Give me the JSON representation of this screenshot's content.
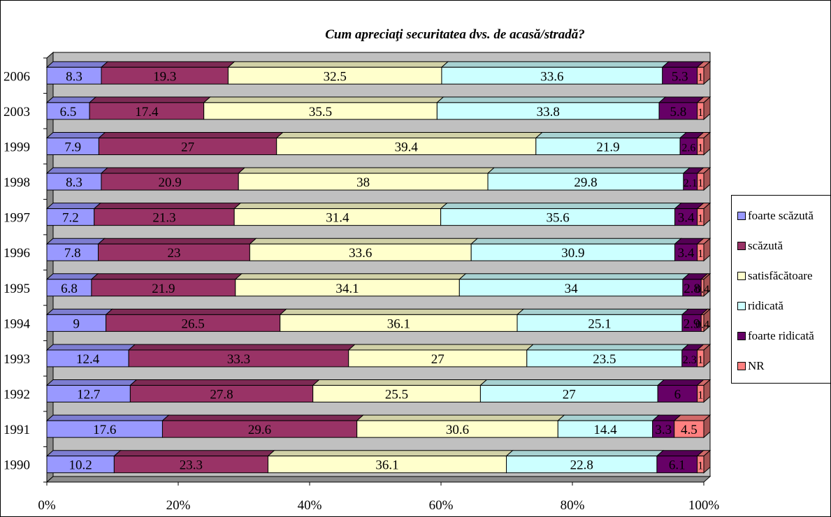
{
  "chart_data": {
    "type": "bar",
    "orientation": "horizontal",
    "stacking": "percent",
    "three_d": true,
    "title": "Cum apreciaţi securitatea dvs. de acasă/stradă?",
    "categories": [
      "2006",
      "2003",
      "1999",
      "1998",
      "1997",
      "1996",
      "1995",
      "1994",
      "1993",
      "1992",
      "1991",
      "1990"
    ],
    "series": [
      {
        "name": "foarte scăzută",
        "color": "#9999FF",
        "values": [
          8.3,
          6.5,
          7.9,
          8.3,
          7.2,
          7.8,
          6.8,
          9,
          12.4,
          12.7,
          17.6,
          10.2
        ]
      },
      {
        "name": "scăzută",
        "color": "#993366",
        "values": [
          19.3,
          17.4,
          27,
          20.9,
          21.3,
          23,
          21.9,
          26.5,
          33.3,
          27.8,
          29.6,
          23.3
        ]
      },
      {
        "name": "satisfăcătoare",
        "color": "#FFFFCC",
        "values": [
          32.5,
          35.5,
          39.4,
          38,
          31.4,
          33.6,
          34.1,
          36.1,
          27,
          25.5,
          30.6,
          36.1
        ]
      },
      {
        "name": "ridicată",
        "color": "#CCFFFF",
        "values": [
          33.6,
          33.8,
          21.9,
          29.8,
          35.6,
          30.9,
          34,
          25.1,
          23.5,
          27,
          14.4,
          22.8
        ]
      },
      {
        "name": "foarte ridicată",
        "color": "#660066",
        "values": [
          5.3,
          5.8,
          2.6,
          2.1,
          3.4,
          3.4,
          2.8,
          2.9,
          2.3,
          6,
          3.3,
          6.1
        ]
      },
      {
        "name": "NR",
        "color": "#FF8080",
        "values": [
          1,
          1,
          1,
          1,
          1,
          1,
          0.4,
          0.4,
          1,
          1,
          4.5,
          1
        ]
      }
    ],
    "data_labels": [
      [
        "8.3",
        "19.3",
        "32.5",
        "33.6",
        "5.3",
        "1"
      ],
      [
        "6.5",
        "17.4",
        "35.5",
        "33.8",
        "5.8",
        "1"
      ],
      [
        "7.9",
        "27",
        "39.4",
        "21.9",
        "2.6",
        "1"
      ],
      [
        "8.3",
        "20.9",
        "38",
        "29.8",
        "2.1",
        "1"
      ],
      [
        "7.2",
        "21.3",
        "31.4",
        "35.6",
        "3.4",
        "1"
      ],
      [
        "7.8",
        "23",
        "33.6",
        "30.9",
        "3.4",
        "1"
      ],
      [
        "6.8",
        "21.9",
        "34.1",
        "34",
        "2.8",
        "0.4"
      ],
      [
        "9",
        "26.5",
        "36.1",
        "25.1",
        "2.9",
        "0.4"
      ],
      [
        "12.4",
        "33.3",
        "27",
        "23.5",
        "2.3",
        "1"
      ],
      [
        "12.7",
        "27.8",
        "25.5",
        "27",
        "6",
        "1"
      ],
      [
        "17.6",
        "29.6",
        "30.6",
        "14.4",
        "3.3",
        "4.5"
      ],
      [
        "10.2",
        "23.3",
        "36.1",
        "22.8",
        "6.1",
        "1"
      ]
    ],
    "x_ticks": [
      "0%",
      "20%",
      "40%",
      "60%",
      "80%",
      "100%"
    ],
    "xlim": [
      0,
      100
    ],
    "grid": false,
    "wall_color": "#C0C0C0",
    "legend_position": "right"
  }
}
